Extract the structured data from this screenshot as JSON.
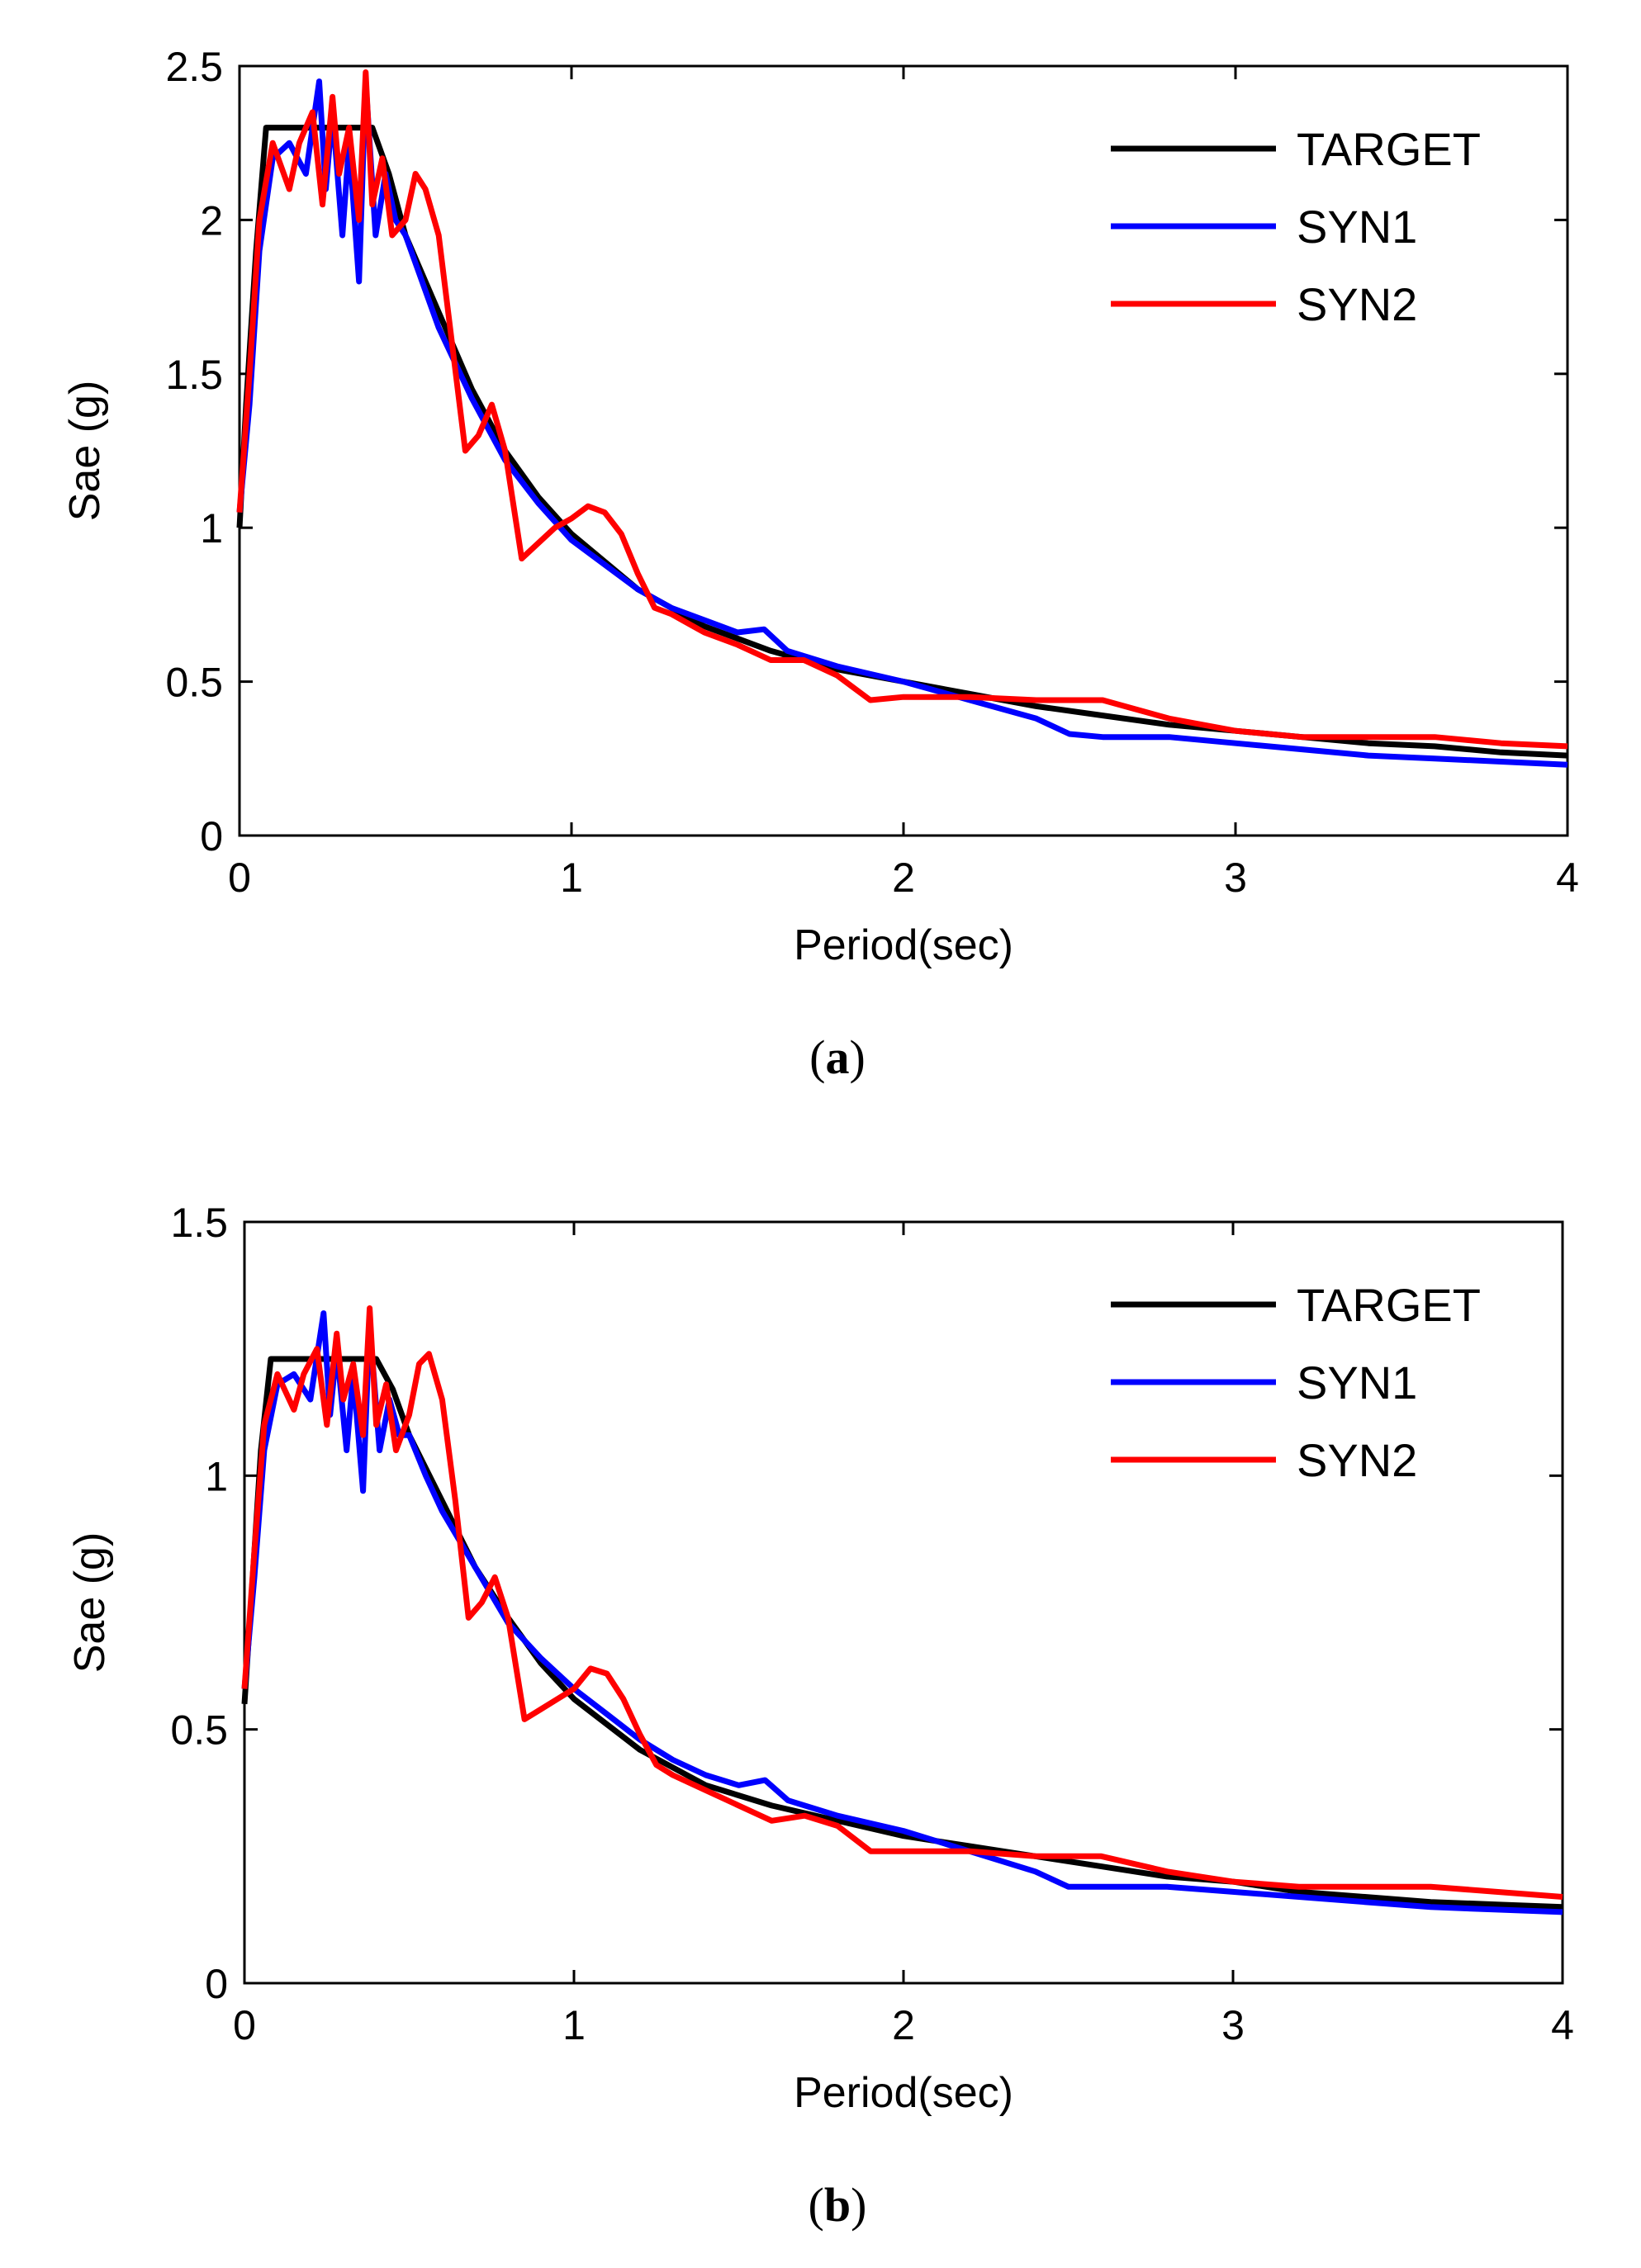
{
  "colors": {
    "target": "#000000",
    "syn1": "#0000ff",
    "syn2": "#ff0000",
    "axis": "#000000",
    "background": "#ffffff"
  },
  "chart_data": [
    {
      "type": "line",
      "caption_letter": "a",
      "caption": "(a)",
      "xlabel": "Period(sec)",
      "ylabel": "Sae (g)",
      "xlim": [
        0,
        4
      ],
      "ylim": [
        0,
        2.5
      ],
      "xticks": [
        0,
        1,
        2,
        3,
        4
      ],
      "yticks": [
        0,
        0.5,
        1,
        1.5,
        2,
        2.5
      ],
      "xtick_labels": [
        "0",
        "1",
        "2",
        "3",
        "4"
      ],
      "ytick_labels": [
        "0",
        "0.5",
        "1",
        "1.5",
        "2",
        "2.5"
      ],
      "grid": false,
      "legend_position": "top-right",
      "series": [
        {
          "name": "TARGET",
          "color": "#000000",
          "x": [
            0,
            0.02,
            0.05,
            0.08,
            0.1,
            0.2,
            0.3,
            0.4,
            0.45,
            0.5,
            0.6,
            0.7,
            0.8,
            0.9,
            1.0,
            1.2,
            1.4,
            1.6,
            1.8,
            2.0,
            2.2,
            2.4,
            2.6,
            2.8,
            3.0,
            3.2,
            3.4,
            3.6,
            3.8,
            4.0
          ],
          "y": [
            1.0,
            1.4,
            1.9,
            2.3,
            2.3,
            2.3,
            2.3,
            2.3,
            2.15,
            1.95,
            1.7,
            1.45,
            1.25,
            1.1,
            0.98,
            0.8,
            0.68,
            0.6,
            0.54,
            0.5,
            0.46,
            0.42,
            0.39,
            0.36,
            0.34,
            0.32,
            0.3,
            0.29,
            0.27,
            0.26
          ]
        },
        {
          "name": "SYN1",
          "color": "#0000ff",
          "x": [
            0,
            0.03,
            0.06,
            0.1,
            0.15,
            0.2,
            0.24,
            0.26,
            0.28,
            0.31,
            0.33,
            0.36,
            0.38,
            0.41,
            0.44,
            0.47,
            0.5,
            0.55,
            0.6,
            0.7,
            0.8,
            0.9,
            1.0,
            1.1,
            1.2,
            1.3,
            1.4,
            1.5,
            1.58,
            1.65,
            1.8,
            2.0,
            2.2,
            2.4,
            2.5,
            2.6,
            2.8,
            3.0,
            3.2,
            3.4,
            3.6,
            3.8,
            4.0
          ],
          "y": [
            1.05,
            1.4,
            1.9,
            2.2,
            2.25,
            2.15,
            2.45,
            2.1,
            2.35,
            1.95,
            2.25,
            1.8,
            2.45,
            1.95,
            2.15,
            2.0,
            1.95,
            1.8,
            1.65,
            1.42,
            1.22,
            1.08,
            0.96,
            0.88,
            0.8,
            0.74,
            0.7,
            0.66,
            0.67,
            0.6,
            0.55,
            0.5,
            0.44,
            0.38,
            0.33,
            0.32,
            0.32,
            0.3,
            0.28,
            0.26,
            0.25,
            0.24,
            0.23
          ]
        },
        {
          "name": "SYN2",
          "color": "#ff0000",
          "x": [
            0,
            0.03,
            0.06,
            0.1,
            0.15,
            0.18,
            0.22,
            0.25,
            0.28,
            0.3,
            0.33,
            0.36,
            0.38,
            0.4,
            0.43,
            0.46,
            0.5,
            0.53,
            0.56,
            0.6,
            0.64,
            0.68,
            0.72,
            0.76,
            0.8,
            0.85,
            0.9,
            0.95,
            1.0,
            1.05,
            1.1,
            1.15,
            1.2,
            1.25,
            1.3,
            1.4,
            1.5,
            1.6,
            1.7,
            1.8,
            1.9,
            2.0,
            2.2,
            2.4,
            2.6,
            2.8,
            3.0,
            3.2,
            3.4,
            3.6,
            3.8,
            4.0
          ],
          "y": [
            1.05,
            1.5,
            2.0,
            2.25,
            2.1,
            2.25,
            2.35,
            2.05,
            2.4,
            2.15,
            2.3,
            2.0,
            2.48,
            2.05,
            2.2,
            1.95,
            2.0,
            2.15,
            2.1,
            1.95,
            1.6,
            1.25,
            1.3,
            1.4,
            1.25,
            0.9,
            0.95,
            1.0,
            1.03,
            1.07,
            1.05,
            0.98,
            0.85,
            0.74,
            0.72,
            0.66,
            0.62,
            0.57,
            0.57,
            0.52,
            0.44,
            0.45,
            0.45,
            0.44,
            0.44,
            0.38,
            0.34,
            0.32,
            0.32,
            0.32,
            0.3,
            0.29
          ]
        }
      ]
    },
    {
      "type": "line",
      "caption_letter": "b",
      "caption": "(b)",
      "xlabel": "Period(sec)",
      "ylabel": "Sae (g)",
      "xlim": [
        0,
        4
      ],
      "ylim": [
        0,
        1.5
      ],
      "xticks": [
        0,
        1,
        2,
        3,
        4
      ],
      "yticks": [
        0,
        0.5,
        1,
        1.5
      ],
      "xtick_labels": [
        "0",
        "1",
        "2",
        "3",
        "4"
      ],
      "ytick_labels": [
        "0",
        "0.5",
        "1",
        "1.5"
      ],
      "grid": false,
      "legend_position": "top-right",
      "series": [
        {
          "name": "TARGET",
          "color": "#000000",
          "x": [
            0,
            0.02,
            0.05,
            0.08,
            0.1,
            0.2,
            0.3,
            0.4,
            0.45,
            0.5,
            0.6,
            0.7,
            0.8,
            0.9,
            1.0,
            1.2,
            1.4,
            1.6,
            1.8,
            2.0,
            2.2,
            2.4,
            2.6,
            2.8,
            3.0,
            3.2,
            3.4,
            3.6,
            3.8,
            4.0
          ],
          "y": [
            0.55,
            0.75,
            1.05,
            1.23,
            1.23,
            1.23,
            1.23,
            1.23,
            1.17,
            1.08,
            0.95,
            0.82,
            0.72,
            0.63,
            0.56,
            0.46,
            0.39,
            0.35,
            0.32,
            0.29,
            0.27,
            0.25,
            0.23,
            0.21,
            0.2,
            0.18,
            0.17,
            0.16,
            0.155,
            0.15
          ]
        },
        {
          "name": "SYN1",
          "color": "#0000ff",
          "x": [
            0,
            0.03,
            0.06,
            0.1,
            0.15,
            0.2,
            0.24,
            0.26,
            0.28,
            0.31,
            0.33,
            0.36,
            0.38,
            0.41,
            0.44,
            0.47,
            0.5,
            0.55,
            0.6,
            0.7,
            0.8,
            0.9,
            1.0,
            1.1,
            1.2,
            1.3,
            1.4,
            1.5,
            1.58,
            1.65,
            1.8,
            2.0,
            2.2,
            2.4,
            2.5,
            2.6,
            2.8,
            3.0,
            3.2,
            3.4,
            3.6,
            3.8,
            4.0
          ],
          "y": [
            0.58,
            0.8,
            1.05,
            1.18,
            1.2,
            1.15,
            1.32,
            1.12,
            1.25,
            1.05,
            1.2,
            0.97,
            1.3,
            1.05,
            1.15,
            1.08,
            1.08,
            1.0,
            0.93,
            0.82,
            0.71,
            0.64,
            0.58,
            0.53,
            0.48,
            0.44,
            0.41,
            0.39,
            0.4,
            0.36,
            0.33,
            0.3,
            0.26,
            0.22,
            0.19,
            0.19,
            0.19,
            0.18,
            0.17,
            0.16,
            0.15,
            0.145,
            0.14
          ]
        },
        {
          "name": "SYN2",
          "color": "#ff0000",
          "x": [
            0,
            0.03,
            0.06,
            0.1,
            0.15,
            0.18,
            0.22,
            0.25,
            0.28,
            0.3,
            0.33,
            0.36,
            0.38,
            0.4,
            0.43,
            0.46,
            0.5,
            0.53,
            0.56,
            0.6,
            0.64,
            0.68,
            0.72,
            0.76,
            0.8,
            0.85,
            0.9,
            0.95,
            1.0,
            1.05,
            1.1,
            1.15,
            1.2,
            1.25,
            1.3,
            1.4,
            1.5,
            1.6,
            1.7,
            1.8,
            1.9,
            2.0,
            2.2,
            2.4,
            2.6,
            2.8,
            3.0,
            3.2,
            3.4,
            3.6,
            3.8,
            4.0
          ],
          "y": [
            0.58,
            0.85,
            1.1,
            1.2,
            1.13,
            1.2,
            1.25,
            1.1,
            1.28,
            1.15,
            1.22,
            1.08,
            1.33,
            1.1,
            1.18,
            1.05,
            1.12,
            1.22,
            1.24,
            1.15,
            0.95,
            0.72,
            0.75,
            0.8,
            0.72,
            0.52,
            0.54,
            0.56,
            0.58,
            0.62,
            0.61,
            0.56,
            0.49,
            0.43,
            0.41,
            0.38,
            0.35,
            0.32,
            0.33,
            0.31,
            0.26,
            0.26,
            0.26,
            0.25,
            0.25,
            0.22,
            0.2,
            0.19,
            0.19,
            0.19,
            0.18,
            0.17
          ]
        }
      ]
    }
  ]
}
